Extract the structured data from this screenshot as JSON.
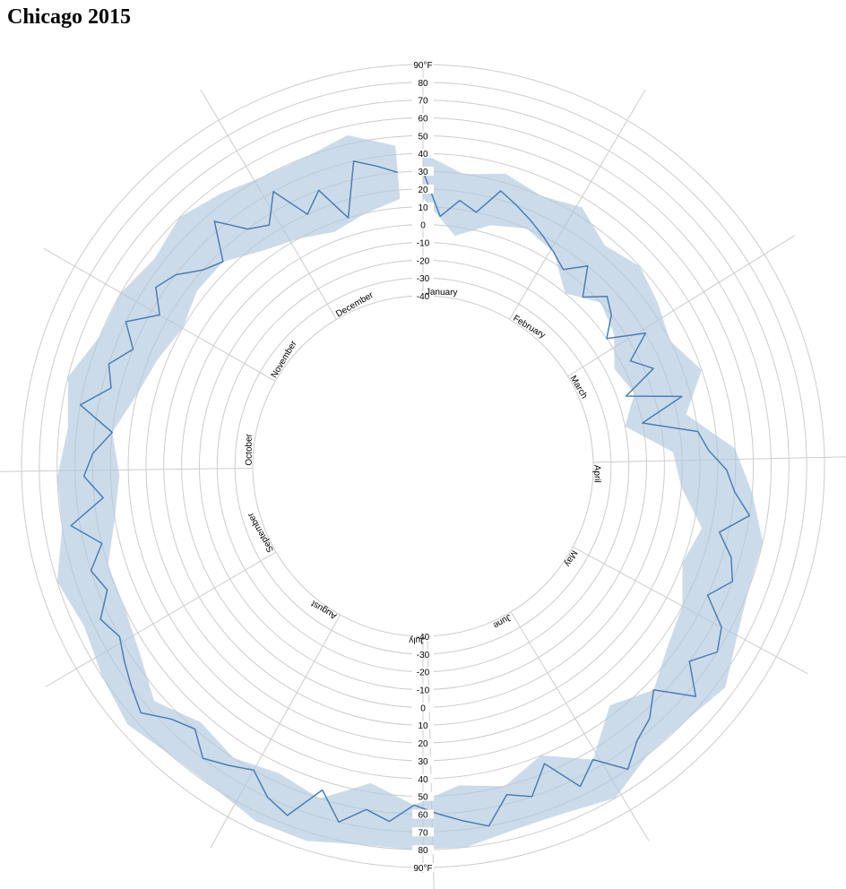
{
  "page": {
    "title": "Chicago 2015"
  },
  "chart_data": {
    "type": "radial-area",
    "title": "Chicago 2015",
    "radial_axis": {
      "unit": "°F",
      "range": [
        -40,
        90
      ],
      "ticks": [
        -40,
        -30,
        -20,
        -10,
        0,
        10,
        20,
        30,
        40,
        50,
        60,
        70,
        80,
        90
      ],
      "tick_labels": [
        "-40",
        "-30",
        "-20",
        "-10",
        "0",
        "10",
        "20",
        "30",
        "40",
        "50",
        "60",
        "70",
        "80",
        "90°F"
      ]
    },
    "angular_axis": {
      "months": [
        "January",
        "February",
        "March",
        "April",
        "May",
        "June",
        "July",
        "August",
        "September",
        "October",
        "November",
        "December"
      ]
    },
    "grid": true,
    "series": [
      {
        "name": "",
        "style": "band",
        "x": [
          1,
          9,
          17,
          25,
          33,
          41,
          49,
          57,
          65,
          73,
          81,
          89,
          97,
          105,
          113,
          121,
          129,
          137,
          145,
          153,
          161,
          169,
          177,
          185,
          193,
          201,
          209,
          217,
          225,
          233,
          241,
          249,
          257,
          265,
          273,
          281,
          289,
          297,
          305,
          313,
          321,
          329,
          337,
          345,
          353,
          361
        ],
        "low": [
          15,
          -5,
          5,
          10,
          5,
          -10,
          0,
          -5,
          -15,
          -10,
          -20,
          5,
          10,
          25,
          20,
          30,
          35,
          45,
          35,
          55,
          40,
          50,
          45,
          55,
          45,
          60,
          55,
          60,
          55,
          65,
          55,
          50,
          50,
          40,
          35,
          40,
          30,
          25,
          20,
          25,
          25,
          15,
          10,
          5,
          10,
          15
        ],
        "high": [
          40,
          30,
          35,
          30,
          35,
          25,
          30,
          25,
          20,
          30,
          15,
          40,
          50,
          60,
          60,
          65,
          75,
          70,
          70,
          80,
          75,
          75,
          80,
          80,
          80,
          85,
          85,
          80,
          80,
          85,
          80,
          75,
          80,
          70,
          70,
          65,
          70,
          60,
          60,
          55,
          60,
          55,
          50,
          50,
          55,
          45
        ]
      },
      {
        "name": "",
        "style": "line",
        "x": [
          1,
          5,
          9,
          13,
          17,
          21,
          25,
          29,
          33,
          37,
          41,
          45,
          49,
          53,
          57,
          61,
          65,
          69,
          73,
          77,
          81,
          85,
          89,
          93,
          97,
          101,
          105,
          109,
          113,
          117,
          121,
          125,
          129,
          133,
          137,
          141,
          145,
          149,
          153,
          157,
          161,
          165,
          169,
          173,
          177,
          181,
          185,
          189,
          193,
          197,
          201,
          205,
          209,
          213,
          217,
          221,
          225,
          229,
          233,
          237,
          241,
          245,
          249,
          253,
          257,
          261,
          265,
          269,
          273,
          277,
          281,
          285,
          289,
          293,
          297,
          301,
          305,
          309,
          313,
          317,
          321,
          325,
          329,
          333,
          337,
          341,
          345,
          349,
          353,
          357,
          361
        ],
        "values": [
          30,
          5,
          15,
          10,
          25,
          20,
          15,
          10,
          5,
          0,
          10,
          -5,
          5,
          0,
          -10,
          10,
          -5,
          5,
          -15,
          15,
          -10,
          20,
          25,
          35,
          40,
          50,
          35,
          45,
          50,
          40,
          55,
          60,
          50,
          65,
          45,
          55,
          60,
          70,
          55,
          65,
          45,
          60,
          55,
          70,
          65,
          60,
          55,
          65,
          60,
          70,
          55,
          75,
          70,
          60,
          65,
          70,
          60,
          65,
          75,
          70,
          65,
          60,
          65,
          55,
          60,
          50,
          65,
          45,
          55,
          50,
          40,
          60,
          45,
          50,
          40,
          50,
          35,
          45,
          40,
          30,
          25,
          45,
          30,
          25,
          40,
          20,
          30,
          10,
          40,
          35,
          30
        ]
      }
    ]
  }
}
